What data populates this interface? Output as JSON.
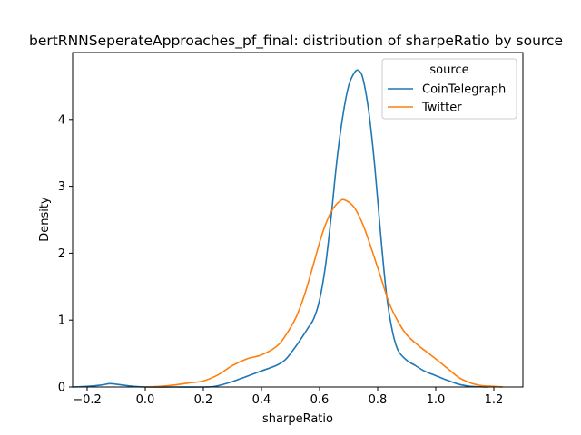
{
  "chart_data": {
    "type": "line",
    "title": "bertRNNSeperateApproaches_pf_final: distribution of sharpeRatio by source",
    "xlabel": "sharpeRatio",
    "ylabel": "Density",
    "xlim": [
      -0.25,
      1.3
    ],
    "ylim": [
      0,
      5.0
    ],
    "xticks": [
      -0.2,
      0.0,
      0.2,
      0.4,
      0.6,
      0.8,
      1.0,
      1.2
    ],
    "xtick_labels": [
      "−0.2",
      "0.0",
      "0.2",
      "0.4",
      "0.6",
      "0.8",
      "1.0",
      "1.2"
    ],
    "yticks": [
      0,
      1,
      2,
      3,
      4
    ],
    "ytick_labels": [
      "0",
      "1",
      "2",
      "3",
      "4"
    ],
    "grid": false,
    "legend": {
      "title": "source",
      "placement": "top-right"
    },
    "series": [
      {
        "name": "CoinTelegraph",
        "color": "#1f77b4",
        "points": [
          [
            -0.25,
            0.0
          ],
          [
            -0.2,
            0.01
          ],
          [
            -0.15,
            0.03
          ],
          [
            -0.12,
            0.05
          ],
          [
            -0.08,
            0.03
          ],
          [
            -0.04,
            0.01
          ],
          [
            0.0,
            0.0
          ],
          [
            0.1,
            0.0
          ],
          [
            0.2,
            0.0
          ],
          [
            0.24,
            0.01
          ],
          [
            0.3,
            0.08
          ],
          [
            0.35,
            0.16
          ],
          [
            0.4,
            0.24
          ],
          [
            0.45,
            0.32
          ],
          [
            0.48,
            0.4
          ],
          [
            0.5,
            0.5
          ],
          [
            0.53,
            0.68
          ],
          [
            0.56,
            0.88
          ],
          [
            0.58,
            1.02
          ],
          [
            0.6,
            1.3
          ],
          [
            0.62,
            1.8
          ],
          [
            0.64,
            2.55
          ],
          [
            0.66,
            3.4
          ],
          [
            0.68,
            4.05
          ],
          [
            0.7,
            4.5
          ],
          [
            0.72,
            4.7
          ],
          [
            0.735,
            4.73
          ],
          [
            0.75,
            4.6
          ],
          [
            0.77,
            4.1
          ],
          [
            0.79,
            3.3
          ],
          [
            0.81,
            2.3
          ],
          [
            0.83,
            1.4
          ],
          [
            0.85,
            0.85
          ],
          [
            0.87,
            0.55
          ],
          [
            0.9,
            0.4
          ],
          [
            0.93,
            0.32
          ],
          [
            0.96,
            0.24
          ],
          [
            1.0,
            0.17
          ],
          [
            1.04,
            0.1
          ],
          [
            1.08,
            0.04
          ],
          [
            1.12,
            0.01
          ],
          [
            1.18,
            0.0
          ]
        ]
      },
      {
        "name": "Twitter",
        "color": "#ff7f0e",
        "points": [
          [
            0.0,
            0.0
          ],
          [
            0.05,
            0.01
          ],
          [
            0.1,
            0.03
          ],
          [
            0.15,
            0.06
          ],
          [
            0.2,
            0.09
          ],
          [
            0.25,
            0.18
          ],
          [
            0.3,
            0.32
          ],
          [
            0.35,
            0.42
          ],
          [
            0.4,
            0.48
          ],
          [
            0.45,
            0.6
          ],
          [
            0.48,
            0.75
          ],
          [
            0.52,
            1.05
          ],
          [
            0.55,
            1.4
          ],
          [
            0.58,
            1.85
          ],
          [
            0.61,
            2.3
          ],
          [
            0.64,
            2.62
          ],
          [
            0.67,
            2.78
          ],
          [
            0.69,
            2.79
          ],
          [
            0.72,
            2.68
          ],
          [
            0.75,
            2.42
          ],
          [
            0.78,
            2.05
          ],
          [
            0.81,
            1.65
          ],
          [
            0.84,
            1.25
          ],
          [
            0.87,
            0.98
          ],
          [
            0.9,
            0.78
          ],
          [
            0.94,
            0.62
          ],
          [
            0.97,
            0.52
          ],
          [
            1.0,
            0.42
          ],
          [
            1.04,
            0.28
          ],
          [
            1.08,
            0.14
          ],
          [
            1.12,
            0.06
          ],
          [
            1.16,
            0.02
          ],
          [
            1.2,
            0.01
          ],
          [
            1.23,
            0.0
          ]
        ]
      }
    ]
  }
}
